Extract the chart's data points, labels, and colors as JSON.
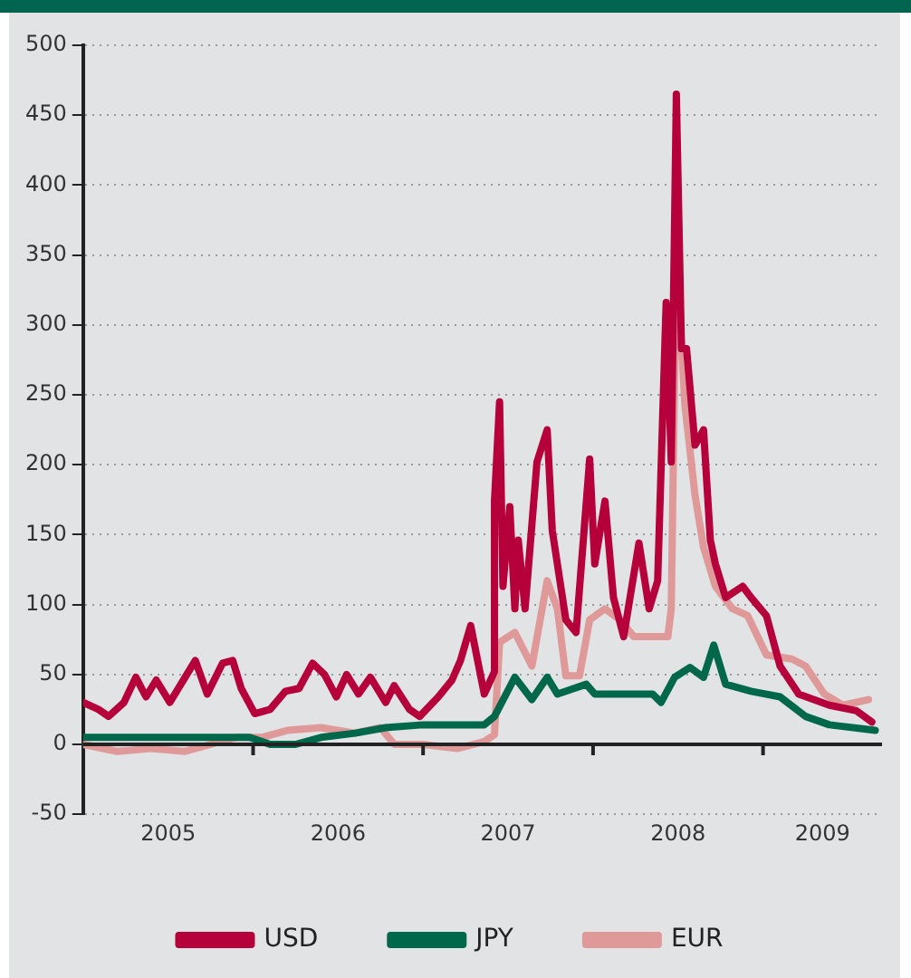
{
  "chart_data": {
    "type": "line",
    "xlim": [
      2005,
      2009.7
    ],
    "ylim": [
      -50,
      500
    ],
    "xticks": [
      {
        "value": 2005.5,
        "label": "2005"
      },
      {
        "value": 2006,
        "label": null
      },
      {
        "value": 2006.5,
        "label": "2006"
      },
      {
        "value": 2007,
        "label": null
      },
      {
        "value": 2007.5,
        "label": "2007"
      },
      {
        "value": 2008,
        "label": null
      },
      {
        "value": 2008.5,
        "label": "2008"
      },
      {
        "value": 2009,
        "label": null
      },
      {
        "value": 2009.35,
        "label": "2009"
      }
    ],
    "yticks": [
      -50,
      0,
      50,
      100,
      150,
      200,
      250,
      300,
      350,
      400,
      450,
      500
    ],
    "grid": "y",
    "legend": "bottom",
    "ref_lines": [
      {
        "axis": "y",
        "value": 0,
        "color": "#222222"
      }
    ],
    "series": [
      {
        "name": "USD",
        "color": "#b5003c",
        "x": [
          2005.0,
          2005.09,
          2005.15,
          2005.24,
          2005.31,
          2005.37,
          2005.43,
          2005.51,
          2005.6,
          2005.66,
          2005.73,
          2005.82,
          2005.88,
          2005.93,
          2006.01,
          2006.1,
          2006.19,
          2006.27,
          2006.35,
          2006.42,
          2006.49,
          2006.55,
          2006.62,
          2006.69,
          2006.78,
          2006.83,
          2006.92,
          2006.98,
          2007.09,
          2007.17,
          2007.22,
          2007.28,
          2007.36,
          2007.42,
          2007.42,
          2007.45,
          2007.47,
          2007.51,
          2007.54,
          2007.56,
          2007.6,
          2007.67,
          2007.73,
          2007.76,
          2007.84,
          2007.9,
          2007.98,
          2008.01,
          2008.07,
          2008.12,
          2008.18,
          2008.27,
          2008.33,
          2008.38,
          2008.43,
          2008.46,
          2008.49,
          2008.52,
          2008.55,
          2008.6,
          2008.65,
          2008.69,
          2008.72,
          2008.78,
          2008.88,
          2008.93,
          2009.02,
          2009.1,
          2009.21,
          2009.39,
          2009.55,
          2009.64
        ],
        "values": [
          30,
          25,
          20,
          30,
          48,
          34,
          46,
          30,
          48,
          60,
          36,
          58,
          60,
          40,
          22,
          25,
          38,
          40,
          58,
          50,
          34,
          50,
          36,
          48,
          30,
          42,
          25,
          20,
          34,
          46,
          60,
          85,
          36,
          52,
          174,
          245,
          113,
          170,
          97,
          146,
          97,
          202,
          225,
          153,
          89,
          80,
          204,
          129,
          174,
          105,
          77,
          144,
          97,
          117,
          316,
          202,
          465,
          283,
          283,
          214,
          225,
          146,
          129,
          105,
          113,
          105,
          92,
          56,
          36,
          28,
          24,
          16
        ]
      },
      {
        "name": "JPY",
        "color": "#00684a",
        "x": [
          2005.0,
          2005.5,
          2005.98,
          2006.1,
          2006.25,
          2006.4,
          2006.6,
          2006.78,
          2007.0,
          2007.36,
          2007.42,
          2007.54,
          2007.64,
          2007.73,
          2007.79,
          2007.96,
          2008.01,
          2008.35,
          2008.4,
          2008.48,
          2008.57,
          2008.65,
          2008.71,
          2008.78,
          2008.93,
          2009.1,
          2009.25,
          2009.39,
          2009.66
        ],
        "values": [
          5,
          5,
          5,
          0,
          0,
          5,
          8,
          12,
          14,
          14,
          20,
          48,
          32,
          48,
          36,
          43,
          36,
          36,
          30,
          48,
          55,
          48,
          71,
          43,
          38,
          34,
          20,
          14,
          10
        ]
      },
      {
        "name": "EUR",
        "color": "#e09999",
        "x": [
          2005.0,
          2005.2,
          2005.4,
          2005.6,
          2005.75,
          2005.9,
          2006.05,
          2006.2,
          2006.4,
          2006.6,
          2006.75,
          2006.83,
          2007.0,
          2007.2,
          2007.36,
          2007.42,
          2007.45,
          2007.54,
          2007.64,
          2007.73,
          2007.79,
          2007.84,
          2007.92,
          2007.98,
          2008.07,
          2008.16,
          2008.24,
          2008.44,
          2008.46,
          2008.49,
          2008.54,
          2008.6,
          2008.65,
          2008.72,
          2008.82,
          2008.91,
          2009.02,
          2009.17,
          2009.25,
          2009.36,
          2009.47,
          2009.62
        ],
        "values": [
          0,
          -5,
          -3,
          -5,
          0,
          5,
          5,
          10,
          12,
          8,
          12,
          0,
          0,
          -3,
          2,
          7,
          73,
          80,
          56,
          117,
          97,
          49,
          49,
          89,
          97,
          89,
          77,
          77,
          97,
          354,
          243,
          178,
          141,
          113,
          97,
          92,
          64,
          61,
          56,
          36,
          28,
          32
        ]
      }
    ]
  }
}
